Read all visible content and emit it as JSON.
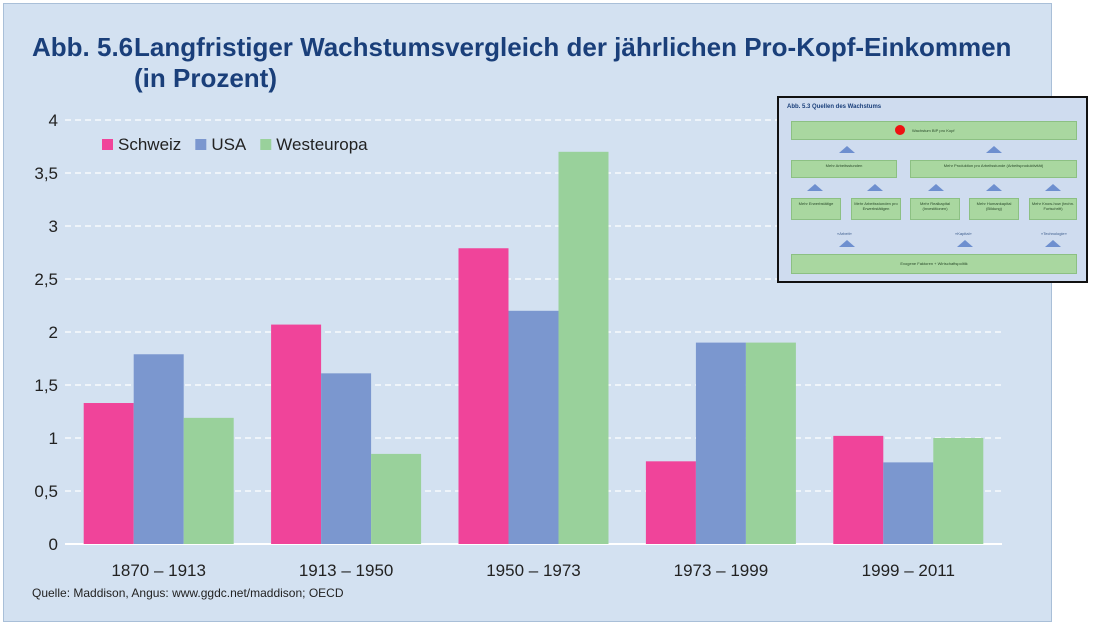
{
  "figure": {
    "number": "Abb. 5.6",
    "title_line1": "Langfristiger Wachstumsvergleich der jährlichen Pro-Kopf-Einkommen",
    "title_line2": "(in Prozent)",
    "source": "Quelle: Maddison, Angus: www.ggdc.net/maddison; OECD"
  },
  "chart_data": {
    "type": "bar",
    "title": "Langfristiger Wachstumsvergleich der jährlichen Pro-Kopf-Einkommen (in Prozent)",
    "categories": [
      "1870 – 1913",
      "1913 – 1950",
      "1950 – 1973",
      "1973 – 1999",
      "1999 – 2011"
    ],
    "series": [
      {
        "name": "Schweiz",
        "color": "#f0449a",
        "values": [
          1.33,
          2.07,
          2.79,
          0.78,
          1.02
        ]
      },
      {
        "name": "USA",
        "color": "#7b97cf",
        "values": [
          1.79,
          1.61,
          2.2,
          1.9,
          0.77
        ]
      },
      {
        "name": "Westeuropa",
        "color": "#99d19b",
        "values": [
          1.19,
          0.85,
          3.7,
          1.9,
          1.0
        ]
      }
    ],
    "ylim": [
      0,
      4
    ],
    "yticks": [
      "0",
      "0,5",
      "1",
      "1,5",
      "2",
      "2,5",
      "3",
      "3,5",
      "4"
    ],
    "ytick_values": [
      0,
      0.5,
      1,
      1.5,
      2,
      2.5,
      3,
      3.5,
      4
    ],
    "grid": true,
    "legend": "top-left"
  },
  "inset": {
    "title": "Abb. 5.3 Quellen des Wachstums",
    "top_box": "Wachstum BIP pro Kopf",
    "mid_left": "Mehr Arbeitsstunden",
    "mid_right": "Mehr Produktion pro Arbeitsstunde (Arbeitsproduktivität)",
    "boxes": [
      "Mehr Erwerbstätige",
      "Mehr Arbeitsstunden pro Erwerbstätigen",
      "Mehr Realkapital (Investitionen)",
      "Mehr Humankapital (Bildung)",
      "Mehr Know-how (techn. Fortschritt)"
    ],
    "labels": [
      "«Arbeit»",
      "«Kapital»",
      "«Technologie»"
    ],
    "bottom_box": "Exogene Faktoren + Wirtschaftspolitik",
    "marker_color": "#ee1111"
  }
}
